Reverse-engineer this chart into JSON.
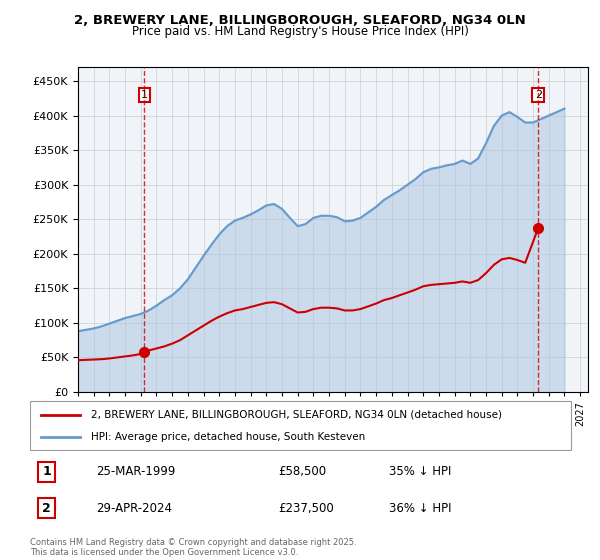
{
  "title_line1": "2, BREWERY LANE, BILLINGBOROUGH, SLEAFORD, NG34 0LN",
  "title_line2": "Price paid vs. HM Land Registry's House Price Index (HPI)",
  "legend_property": "2, BREWERY LANE, BILLINGBOROUGH, SLEAFORD, NG34 0LN (detached house)",
  "legend_hpi": "HPI: Average price, detached house, South Kesteven",
  "footnote": "Contains HM Land Registry data © Crown copyright and database right 2025.\nThis data is licensed under the Open Government Licence v3.0.",
  "sale1_label": "1",
  "sale1_date": "25-MAR-1999",
  "sale1_price": "£58,500",
  "sale1_note": "35% ↓ HPI",
  "sale2_label": "2",
  "sale2_date": "29-APR-2024",
  "sale2_price": "£237,500",
  "sale2_note": "36% ↓ HPI",
  "property_color": "#cc0000",
  "hpi_color": "#6699cc",
  "hpi_fill_color": "#aac4e0",
  "background_color": "#ffffff",
  "grid_color": "#cccccc",
  "ylim": [
    0,
    470000
  ],
  "xlim_start": 1995.0,
  "xlim_end": 2027.5,
  "sale1_year": 1999.23,
  "sale1_value": 58500,
  "sale2_year": 2024.33,
  "sale2_value": 237500,
  "hpi_years": [
    1995.0,
    1995.5,
    1996.0,
    1996.5,
    1997.0,
    1997.5,
    1998.0,
    1998.5,
    1999.0,
    1999.5,
    2000.0,
    2000.5,
    2001.0,
    2001.5,
    2002.0,
    2002.5,
    2003.0,
    2003.5,
    2004.0,
    2004.5,
    2005.0,
    2005.5,
    2006.0,
    2006.5,
    2007.0,
    2007.5,
    2008.0,
    2008.5,
    2009.0,
    2009.5,
    2010.0,
    2010.5,
    2011.0,
    2011.5,
    2012.0,
    2012.5,
    2013.0,
    2013.5,
    2014.0,
    2014.5,
    2015.0,
    2015.5,
    2016.0,
    2016.5,
    2017.0,
    2017.5,
    2018.0,
    2018.5,
    2019.0,
    2019.5,
    2020.0,
    2020.5,
    2021.0,
    2021.5,
    2022.0,
    2022.5,
    2023.0,
    2023.5,
    2024.0,
    2024.5,
    2025.0,
    2025.5,
    2026.0
  ],
  "hpi_values": [
    88000,
    90000,
    92000,
    95000,
    99000,
    103000,
    107000,
    110000,
    113000,
    118000,
    125000,
    133000,
    140000,
    150000,
    163000,
    180000,
    197000,
    213000,
    228000,
    240000,
    248000,
    252000,
    257000,
    263000,
    270000,
    272000,
    265000,
    252000,
    240000,
    243000,
    252000,
    255000,
    255000,
    253000,
    247000,
    248000,
    252000,
    260000,
    268000,
    278000,
    285000,
    292000,
    300000,
    308000,
    318000,
    323000,
    325000,
    328000,
    330000,
    335000,
    330000,
    338000,
    360000,
    385000,
    400000,
    405000,
    398000,
    390000,
    390000,
    395000,
    400000,
    405000,
    410000
  ],
  "property_years": [
    1995.0,
    1995.5,
    1996.0,
    1996.5,
    1997.0,
    1997.5,
    1998.0,
    1998.5,
    1999.0,
    1999.23,
    1999.5,
    2000.0,
    2000.5,
    2001.0,
    2001.5,
    2002.0,
    2002.5,
    2003.0,
    2003.5,
    2004.0,
    2004.5,
    2005.0,
    2005.5,
    2006.0,
    2006.5,
    2007.0,
    2007.5,
    2008.0,
    2008.5,
    2009.0,
    2009.5,
    2010.0,
    2010.5,
    2011.0,
    2011.5,
    2012.0,
    2012.5,
    2013.0,
    2013.5,
    2014.0,
    2014.5,
    2015.0,
    2015.5,
    2016.0,
    2016.5,
    2017.0,
    2017.5,
    2018.0,
    2018.5,
    2019.0,
    2019.5,
    2020.0,
    2020.5,
    2021.0,
    2021.5,
    2022.0,
    2022.5,
    2023.0,
    2023.5,
    2024.33
  ],
  "property_values": [
    46000,
    46500,
    47000,
    47500,
    48500,
    50000,
    51500,
    53000,
    55000,
    58500,
    60000,
    63000,
    66000,
    70000,
    75000,
    82000,
    89000,
    96000,
    103000,
    109000,
    114000,
    118000,
    120000,
    123000,
    126000,
    129000,
    130000,
    127000,
    121000,
    115000,
    116000,
    120000,
    122000,
    122000,
    121000,
    118000,
    118000,
    120000,
    124000,
    128000,
    133000,
    136000,
    140000,
    144000,
    148000,
    153000,
    155000,
    156000,
    157000,
    158000,
    160000,
    158000,
    162000,
    172000,
    184000,
    192000,
    194000,
    191000,
    187000,
    237500
  ]
}
